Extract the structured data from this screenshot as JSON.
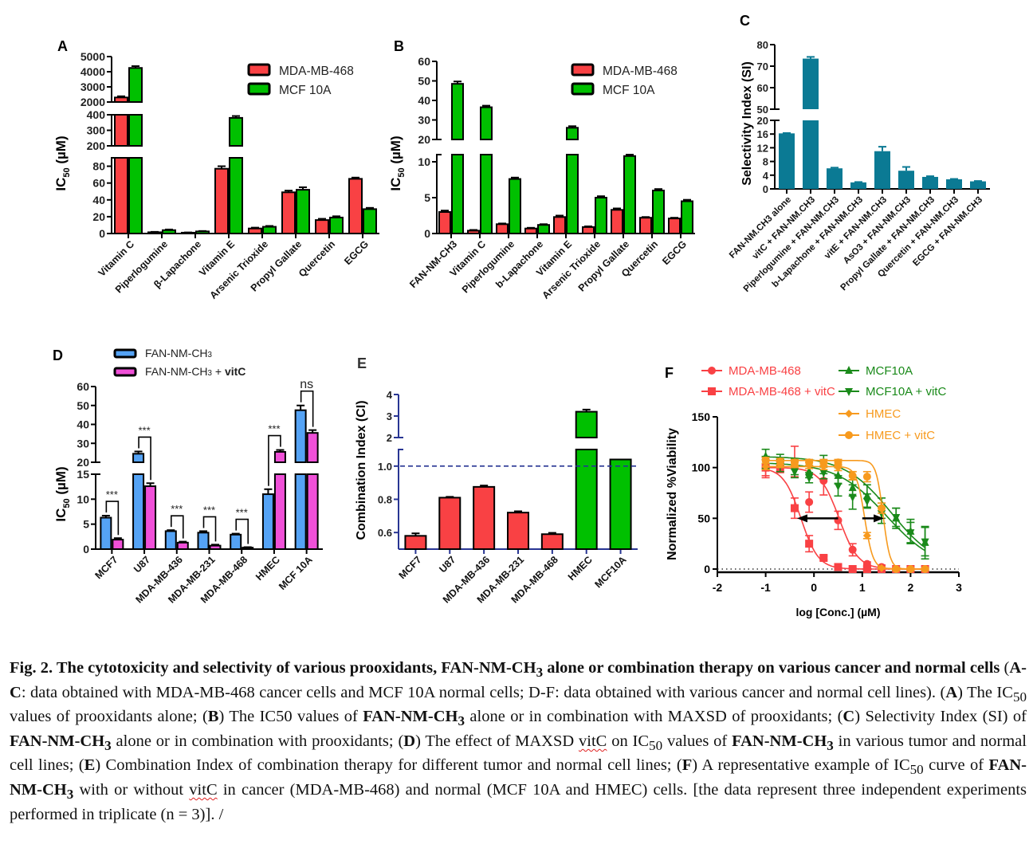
{
  "figure": {
    "caption": {
      "lead": "Fig. 2",
      "title": ". The cytotoxicity and selectivity of various prooxidants, FAN-NM-CH",
      "title_sub": "3",
      "title_rest": " alone or combination therapy on various cancer and normal cells",
      "p1": " (",
      "p1b": "A-C",
      "p1c": ": data obtained with MDA-MB-468 cancer cells and MCF 10A normal cells; D-F: data obtained with various cancer and normal cell lines). (",
      "A": "A",
      "p2": ") The IC",
      "sub50": "50",
      "p3": " values of prooxidants alone; (",
      "B": "B",
      "p4": ") The IC50 values of ",
      "fan": "FAN-NM-CH",
      "sub3": "3",
      "p5": " alone or in combination with MAXSD of prooxidants; (",
      "C": "C",
      "p6": ") Selectivity Index (SI) of ",
      "p7": " alone or in combination with prooxidants; (",
      "D": "D",
      "p8": ") The effect of MAXSD ",
      "vitc": "vitC",
      "p9": " on IC",
      "p10": " values of ",
      "p11": " in various tumor and normal cell lines; (",
      "E": "E",
      "p12": ") Combination Index of combination therapy for different tumor and normal cell lines; (",
      "F": "F",
      "p13": ") A representative example of IC",
      "p14": " curve of ",
      "p15": " with or without ",
      "p16": " in cancer (MDA-MB-468) and normal (MCF 10A and HMEC) cells. [the data represent three independent experiments performed in triplicate (n = 3)]. /"
    }
  },
  "colors": {
    "red": "#f94144",
    "green": "#00c000",
    "teal": "#0b7a94",
    "blue": "#55a3f5",
    "magenta": "#f050d8",
    "navy": "#283593",
    "darkgreen": "#1a8a1a",
    "orange": "#f79a1e"
  },
  "chart_data": [
    {
      "id": "A",
      "panel_label": "A",
      "type": "bar",
      "ylabel": "IC50 (µM)",
      "categories": [
        "Vitamin C",
        "Piperlogumine",
        "β-Lapachone",
        "Vitamin E",
        "Arsenic Trioxide",
        "Propyl Gallate",
        "Quercetin",
        "EGCG"
      ],
      "series": [
        {
          "name": "MDA-MB-468",
          "color": "#f94144",
          "values": [
            2300,
            1.5,
            1.0,
            77,
            6,
            49,
            16,
            65
          ],
          "errors": [
            80,
            0.5,
            0.3,
            3,
            1,
            2,
            1.5,
            1.5
          ]
        },
        {
          "name": "MCF 10A",
          "color": "#00c000",
          "values": [
            4250,
            4,
            2.5,
            380,
            8,
            52,
            19,
            29
          ],
          "errors": [
            120,
            0.8,
            0.5,
            12,
            1,
            3,
            1.5,
            1.5
          ]
        }
      ],
      "broken_axis": [
        {
          "range": [
            0,
            90
          ],
          "ticks": [
            0,
            20,
            40,
            60,
            80
          ]
        },
        {
          "range": [
            200,
            400
          ],
          "ticks": [
            200,
            300,
            400
          ]
        },
        {
          "range": [
            2000,
            5000
          ],
          "ticks": [
            2000,
            3000,
            4000,
            5000
          ]
        }
      ],
      "legend": "top-right"
    },
    {
      "id": "B",
      "panel_label": "B",
      "type": "bar",
      "ylabel": "IC50 (µM)",
      "categories": [
        "FAN-NM-CH3",
        "Vitamin C",
        "Piperlogumine",
        "b-Lapachone",
        "Vitamin E",
        "Arsenic Trioxide",
        "Propyl Gallate",
        "Quercetin",
        "EGCG"
      ],
      "series": [
        {
          "name": "MDA-MB-468",
          "color": "#f94144",
          "values": [
            3.0,
            0.4,
            1.3,
            0.7,
            2.3,
            0.9,
            3.3,
            2.2,
            2.1
          ],
          "errors": [
            0.2,
            0.1,
            0.1,
            0.1,
            0.2,
            0.1,
            0.2,
            0.1,
            0.1
          ]
        },
        {
          "name": "MCF 10A",
          "color": "#00c000",
          "values": [
            48.5,
            36.5,
            7.6,
            1.2,
            26,
            5.0,
            10.8,
            6.0,
            4.5
          ],
          "errors": [
            1.2,
            0.8,
            0.2,
            0.1,
            0.8,
            0.2,
            0.2,
            0.2,
            0.2
          ]
        }
      ],
      "broken_axis": [
        {
          "range": [
            0,
            11
          ],
          "ticks": [
            0,
            5,
            10
          ]
        },
        {
          "range": [
            20,
            60
          ],
          "ticks": [
            20,
            30,
            40,
            50,
            60
          ]
        }
      ],
      "legend": "top-right"
    },
    {
      "id": "C",
      "panel_label": "C",
      "type": "bar",
      "ylabel": "Selectivity Index (SI)",
      "categories": [
        "FAN-NM.CH3 alone",
        "vitC + FAN-NM.CH3",
        "Piperlogumine + FAN-NM.CH3",
        "b-Lapachone + FAN-NM.CH3",
        "vitE + FAN-NM.CH3",
        "AsO3 + FAN-NM.CH3",
        "Propyl Gallate + FAN-NM.CH3",
        "Quercetin + FAN-NM.CH3",
        "EGCG + FAN-NM.CH3"
      ],
      "series": [
        {
          "name": "SI",
          "color": "#0b7a94",
          "values": [
            16.2,
            73.5,
            6.0,
            1.9,
            11.0,
            5.3,
            3.5,
            2.8,
            2.2
          ],
          "errors": [
            0.1,
            0.8,
            0.2,
            0.1,
            1.3,
            1.1,
            0.2,
            0.1,
            0.1
          ]
        }
      ],
      "broken_axis": [
        {
          "range": [
            0,
            20
          ],
          "ticks": [
            0,
            4,
            8,
            12,
            16,
            20
          ]
        },
        {
          "range": [
            50,
            80
          ],
          "ticks": [
            50,
            60,
            70,
            80
          ]
        }
      ]
    },
    {
      "id": "D",
      "panel_label": "D",
      "type": "bar",
      "ylabel": "IC50 (µM)",
      "categories": [
        "MCF7",
        "U87",
        "MDA-MB-436",
        "MDA-MB-231",
        "MDA-MB-468",
        "HMEC",
        "MCF 10A"
      ],
      "series": [
        {
          "name": "FAN-NM-CH3",
          "color": "#55a3f5",
          "values": [
            6.3,
            24.5,
            3.6,
            3.3,
            2.9,
            11.0,
            47.5
          ],
          "errors": [
            0.4,
            1.2,
            0.2,
            0.3,
            0.2,
            1.0,
            2.5
          ]
        },
        {
          "name": "FAN-NM-CH3 + vitC",
          "color": "#f050d8",
          "values": [
            1.9,
            12.6,
            1.3,
            0.7,
            0.3,
            25.5,
            35.5
          ],
          "errors": [
            0.3,
            0.6,
            0.2,
            0.2,
            0.1,
            1.0,
            1.5
          ]
        }
      ],
      "significance": [
        "***",
        "***",
        "***",
        "***",
        "***",
        "***",
        "ns"
      ],
      "broken_axis": [
        {
          "range": [
            0,
            15
          ],
          "ticks": [
            0,
            5,
            10,
            15
          ]
        },
        {
          "range": [
            20,
            60
          ],
          "ticks": [
            20,
            30,
            40,
            50,
            60
          ]
        }
      ],
      "legend": "top-left"
    },
    {
      "id": "E",
      "panel_label": "E",
      "type": "bar",
      "ylabel": "Combination Index (CI)",
      "categories": [
        "MCF7",
        "U87",
        "MDA-MB-436",
        "MDA-MB-231",
        "MDA-MB-468",
        "HMEC",
        "MCF10A"
      ],
      "series": [
        {
          "name": "CI",
          "values": [
            0.58,
            0.81,
            0.875,
            0.72,
            0.59,
            3.2,
            1.04
          ],
          "errors": [
            0.015,
            0.005,
            0.008,
            0.008,
            0.008,
            0.1,
            0.0
          ],
          "colors": [
            "#f94144",
            "#f94144",
            "#f94144",
            "#f94144",
            "#f94144",
            "#00c000",
            "#00c000"
          ]
        }
      ],
      "reference_line": 1.0,
      "broken_axis": [
        {
          "range": [
            0.5,
            1.1
          ],
          "ticks": [
            0.6,
            0.8,
            1.0
          ]
        },
        {
          "range": [
            2,
            4
          ],
          "ticks": [
            2,
            3,
            4
          ]
        }
      ]
    },
    {
      "id": "F",
      "panel_label": "F",
      "type": "line",
      "xlabel": "log [Conc.] (µM)",
      "ylabel": "Normalized %Viability",
      "xlim": [
        -2,
        3
      ],
      "ylim": [
        0,
        150
      ],
      "xticks": [
        -2,
        -1,
        0,
        1,
        2,
        3
      ],
      "yticks": [
        0,
        50,
        100,
        150
      ],
      "reference_line": 0,
      "annotations": [
        {
          "type": "arrow",
          "from": [
            0.5,
            50
          ],
          "to": [
            -0.35,
            50
          ]
        },
        {
          "type": "arrow",
          "from": [
            1.0,
            50
          ],
          "to": [
            1.45,
            50
          ]
        }
      ],
      "series": [
        {
          "name": "MDA-MB-468",
          "color": "#f94144",
          "marker": "circle",
          "ic50": 0.52,
          "hill": 2.2,
          "x": [
            -1,
            -0.7,
            -0.4,
            -0.1,
            0.2,
            0.5,
            0.8,
            1.1,
            1.4,
            1.7,
            2.0,
            2.3
          ],
          "y": [
            100,
            101,
            106,
            66,
            87,
            48,
            19,
            5,
            2,
            0,
            0,
            0
          ],
          "errors": [
            10,
            5,
            15,
            10,
            14,
            9,
            6,
            2,
            2,
            1,
            1,
            1
          ]
        },
        {
          "name": "MDA-MB-468 + vitC",
          "color": "#f94144",
          "marker": "square",
          "ic50": -0.27,
          "hill": 2.4,
          "x": [
            -1,
            -0.7,
            -0.4,
            -0.1,
            0.2,
            0.5,
            0.8,
            1.1,
            1.4,
            1.7,
            2.0,
            2.3
          ],
          "y": [
            100,
            100,
            60,
            25,
            11,
            2,
            0,
            0,
            0,
            0,
            0,
            0
          ],
          "errors": [
            8,
            5,
            10,
            8,
            2,
            2,
            1,
            1,
            1,
            1,
            1,
            1
          ]
        },
        {
          "name": "MCF10A",
          "color": "#1a8a1a",
          "marker": "triangle-up",
          "ic50": 1.6,
          "hill": 0.9,
          "x": [
            -1,
            -0.7,
            -0.4,
            -0.1,
            0.2,
            0.5,
            0.8,
            1.1,
            1.4,
            1.7,
            2.0,
            2.3
          ],
          "y": [
            111,
            107,
            101,
            96,
            103,
            92,
            80,
            72,
            60,
            50,
            37,
            26
          ],
          "errors": [
            7,
            6,
            8,
            6,
            9,
            8,
            8,
            11,
            10,
            10,
            12,
            16
          ]
        },
        {
          "name": "MCF10A + vitC",
          "color": "#1a8a1a",
          "marker": "triangle-down",
          "ic50": 1.5,
          "hill": 0.85,
          "x": [
            -1,
            -0.7,
            -0.4,
            -0.1,
            0.2,
            0.5,
            0.8,
            1.1,
            1.4,
            1.7,
            2.0,
            2.3
          ],
          "y": [
            105,
            102,
            96,
            90,
            95,
            82,
            71,
            67,
            55,
            51,
            36,
            27
          ],
          "errors": [
            6,
            6,
            6,
            5,
            6,
            10,
            12,
            7,
            10,
            9,
            10,
            14
          ]
        },
        {
          "name": "HMEC",
          "color": "#f79a1e",
          "marker": "diamond",
          "ic50": 1.05,
          "hill": 5.0,
          "x": [
            -1,
            -0.7,
            -0.4,
            -0.1,
            0.2,
            0.5,
            0.8,
            1.1,
            1.4,
            1.7,
            2.0,
            2.3
          ],
          "y": [
            101,
            103,
            103,
            102,
            101,
            100,
            92,
            33,
            1,
            0,
            0,
            0
          ],
          "errors": [
            3,
            3,
            3,
            3,
            3,
            3,
            4,
            3,
            1,
            1,
            1,
            1
          ]
        },
        {
          "name": "HMEC + vitC",
          "color": "#f79a1e",
          "marker": "circle",
          "ic50": 1.43,
          "hill": 6.0,
          "x": [
            -1,
            -0.7,
            -0.4,
            -0.1,
            0.2,
            0.5,
            0.8,
            1.1,
            1.4,
            1.7,
            2.0,
            2.3
          ],
          "y": [
            107,
            106,
            105,
            105,
            105,
            105,
            92,
            91,
            60,
            0,
            0,
            0
          ],
          "errors": [
            3,
            3,
            3,
            3,
            3,
            3,
            4,
            5,
            5,
            1,
            1,
            1
          ]
        }
      ],
      "legend": "top"
    }
  ]
}
